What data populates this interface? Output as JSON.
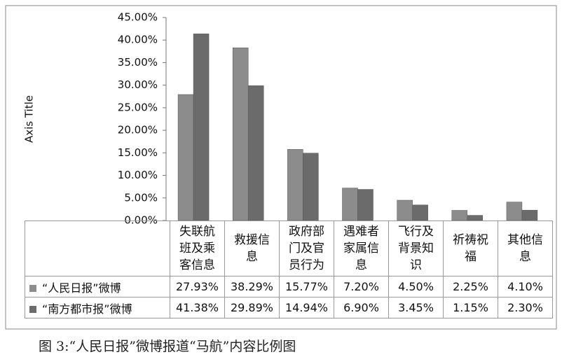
{
  "chart_data": {
    "type": "bar",
    "y_axis_label": "Axis Title",
    "caption": "图 3:“人民日报”微博报道“马航”内容比例图",
    "categories": [
      "失联航班及乘客信息",
      "救援信息",
      "政府部门及官员行为",
      "遇难者家属信息",
      "飞行及背景知识",
      "祈祷祝福",
      "其他信息"
    ],
    "series": [
      {
        "name": "“人民日报”微博",
        "color": "#8c8c8c",
        "values": [
          27.93,
          38.29,
          15.77,
          7.2,
          4.5,
          2.25,
          4.1
        ],
        "value_labels": [
          "27.93%",
          "38.29%",
          "15.77%",
          "7.20%",
          "4.50%",
          "2.25%",
          "4.10%"
        ]
      },
      {
        "name": "“南方都市报”微博",
        "color": "#6b6b6b",
        "values": [
          41.38,
          29.89,
          14.94,
          6.9,
          3.45,
          1.15,
          2.3
        ],
        "value_labels": [
          "41.38%",
          "29.89%",
          "14.94%",
          "6.90%",
          "3.45%",
          "1.15%",
          "2.30%"
        ]
      }
    ],
    "ylim": [
      0,
      45
    ],
    "yticks": [
      {
        "value": 0,
        "label": "0.00%"
      },
      {
        "value": 5,
        "label": "5.00%"
      },
      {
        "value": 10,
        "label": "10.00%"
      },
      {
        "value": 15,
        "label": "15.00%"
      },
      {
        "value": 20,
        "label": "20.00%"
      },
      {
        "value": 25,
        "label": "25.00%"
      },
      {
        "value": 30,
        "label": "30.00%"
      },
      {
        "value": 35,
        "label": "35.00%"
      },
      {
        "value": 40,
        "label": "40.00%"
      },
      {
        "value": 45,
        "label": "45.00%"
      }
    ],
    "grid": false
  }
}
